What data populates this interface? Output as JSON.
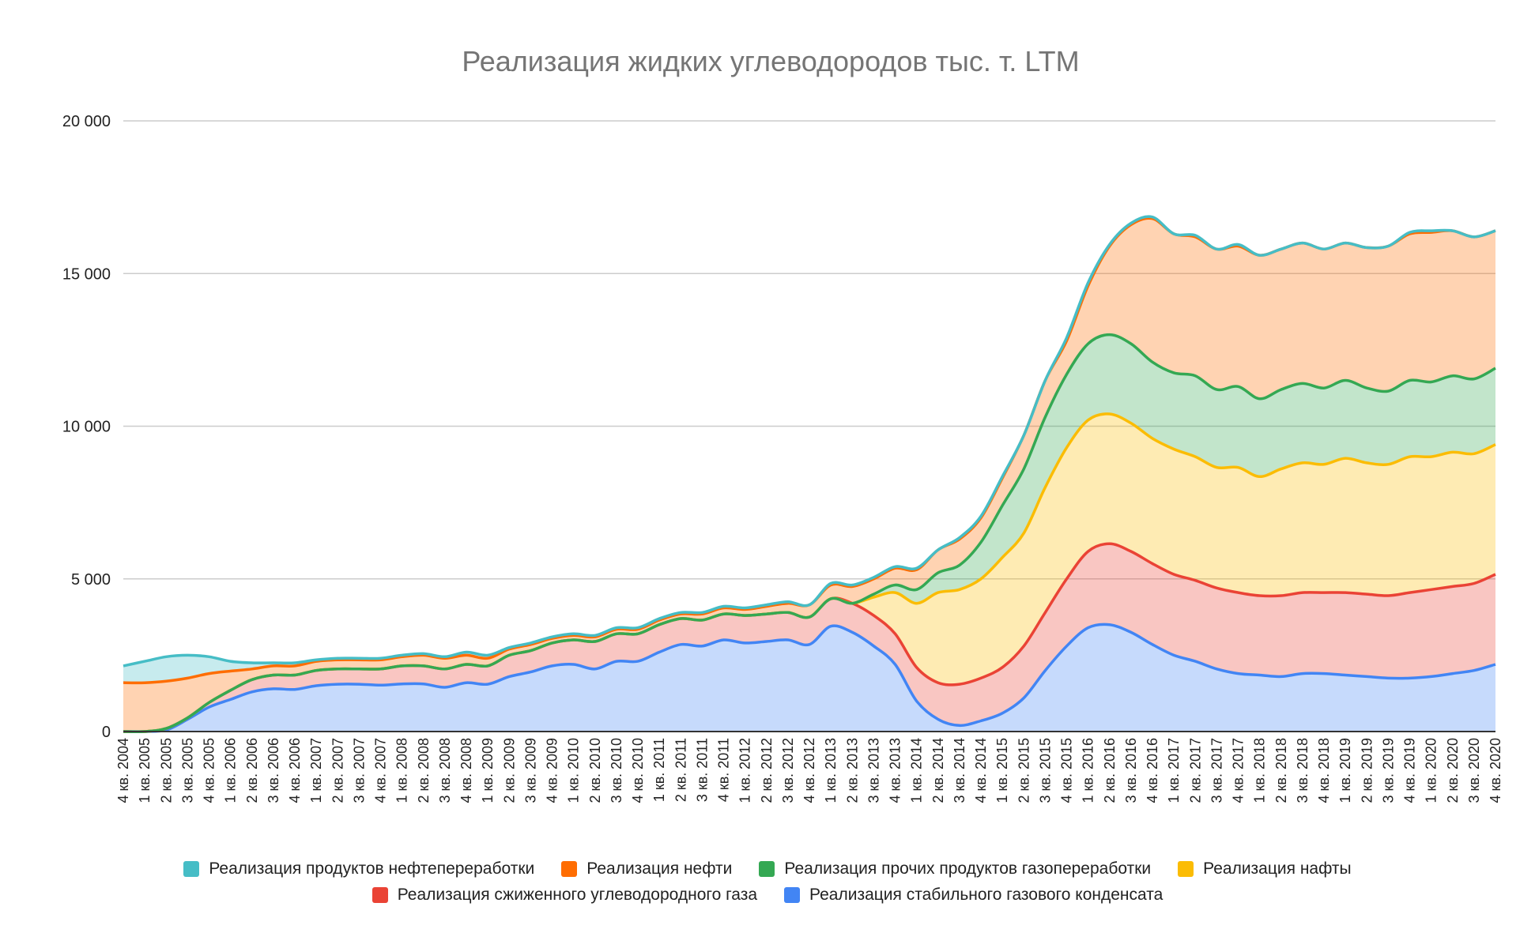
{
  "chart_data": {
    "type": "area",
    "stacked": true,
    "title": "Реализация жидких углеводородов тыс. т. LTM",
    "xlabel": "",
    "ylabel": "",
    "ylim": [
      0,
      20000
    ],
    "yticks": [
      0,
      5000,
      10000,
      15000,
      20000
    ],
    "ytick_labels": [
      "0",
      "5 000",
      "10 000",
      "15 000",
      "20 000"
    ],
    "grid": true,
    "legend_position": "bottom",
    "categories": [
      "4 кв. 2004",
      "1 кв. 2005",
      "2 кв. 2005",
      "3 кв. 2005",
      "4 кв. 2005",
      "1 кв. 2006",
      "2 кв. 2006",
      "3 кв. 2006",
      "4 кв. 2006",
      "1 кв. 2007",
      "2 кв. 2007",
      "3 кв. 2007",
      "4 кв. 2007",
      "1 кв. 2008",
      "2 кв. 2008",
      "3 кв. 2008",
      "4 кв. 2008",
      "1 кв. 2009",
      "2 кв. 2009",
      "3 кв. 2009",
      "4 кв. 2009",
      "1 кв. 2010",
      "2 кв. 2010",
      "3 кв. 2010",
      "4 кв. 2010",
      "1 кв. 2011",
      "2 кв. 2011",
      "3 кв. 2011",
      "4 кв. 2011",
      "1 кв. 2012",
      "2 кв. 2012",
      "3 кв. 2012",
      "4 кв. 2012",
      "1 кв. 2013",
      "2 кв. 2013",
      "3 кв. 2013",
      "4 кв. 2013",
      "1 кв. 2014",
      "2 кв. 2014",
      "3 кв. 2014",
      "4 кв. 2014",
      "1 кв. 2015",
      "2 кв. 2015",
      "3 кв. 2015",
      "4 кв. 2015",
      "1 кв. 2016",
      "2 кв. 2016",
      "3 кв. 2016",
      "4 кв. 2016",
      "1 кв. 2017",
      "2 кв. 2017",
      "3 кв. 2017",
      "4 кв. 2017",
      "1 кв. 2018",
      "2 кв. 2018",
      "3 кв. 2018",
      "4 кв. 2018",
      "1 кв. 2019",
      "2 кв. 2019",
      "3 кв. 2019",
      "4 кв. 2019",
      "1 кв. 2020",
      "2 кв. 2020",
      "3 кв. 2020",
      "4 кв. 2020"
    ],
    "series": [
      {
        "name": "Реализация стабильного газового конденсата",
        "color": "#4285f4",
        "values": [
          0,
          0,
          50,
          400,
          800,
          1050,
          1300,
          1400,
          1380,
          1500,
          1550,
          1550,
          1520,
          1560,
          1560,
          1450,
          1600,
          1550,
          1800,
          1950,
          2150,
          2200,
          2050,
          2300,
          2300,
          2600,
          2850,
          2800,
          3000,
          2900,
          2950,
          3000,
          2850,
          3450,
          3250,
          2800,
          2200,
          1000,
          400,
          200,
          350,
          600,
          1100,
          2000,
          2800,
          3400,
          3500,
          3250,
          2850,
          2500,
          2300,
          2050,
          1900,
          1850,
          1800,
          1900,
          1900,
          1850,
          1800,
          1750,
          1750,
          1800,
          1900,
          2000,
          2200
        ]
      },
      {
        "name": "Реализация сжиженного углеводородного газа",
        "color": "#ea4335",
        "values": [
          0,
          0,
          50,
          50,
          150,
          300,
          400,
          450,
          470,
          500,
          500,
          500,
          530,
          590,
          590,
          600,
          600,
          600,
          700,
          700,
          750,
          800,
          900,
          900,
          900,
          900,
          850,
          850,
          850,
          900,
          900,
          900,
          900,
          900,
          950,
          1000,
          1000,
          1100,
          1200,
          1350,
          1400,
          1500,
          1700,
          1900,
          2200,
          2500,
          2650,
          2650,
          2650,
          2650,
          2650,
          2650,
          2650,
          2600,
          2650,
          2650,
          2650,
          2700,
          2700,
          2700,
          2800,
          2850,
          2850,
          2850,
          2950
        ]
      },
      {
        "name": "Реализация нафты",
        "color": "#fbbc04",
        "values": [
          0,
          0,
          0,
          0,
          0,
          0,
          0,
          0,
          0,
          0,
          0,
          0,
          0,
          0,
          0,
          0,
          0,
          0,
          0,
          0,
          0,
          0,
          0,
          0,
          0,
          0,
          0,
          0,
          0,
          0,
          0,
          0,
          0,
          0,
          0,
          600,
          1350,
          2100,
          2950,
          3100,
          3250,
          3600,
          3700,
          4100,
          4300,
          4300,
          4250,
          4200,
          4100,
          4100,
          4050,
          3950,
          4100,
          3900,
          4150,
          4250,
          4200,
          4400,
          4300,
          4300,
          4450,
          4350,
          4400,
          4250,
          4250
        ]
      },
      {
        "name": "Реализация прочих продуктов газопереработки",
        "color": "#34a853",
        "values": [
          0,
          0,
          0,
          0,
          0,
          0,
          0,
          0,
          0,
          0,
          0,
          0,
          0,
          0,
          0,
          0,
          0,
          0,
          0,
          0,
          0,
          0,
          0,
          0,
          0,
          0,
          0,
          0,
          0,
          0,
          0,
          0,
          0,
          0,
          0,
          100,
          250,
          450,
          650,
          800,
          1200,
          1700,
          2100,
          2300,
          2400,
          2500,
          2600,
          2600,
          2500,
          2500,
          2650,
          2550,
          2650,
          2550,
          2600,
          2600,
          2500,
          2550,
          2450,
          2400,
          2500,
          2450,
          2500,
          2450,
          2500
        ]
      },
      {
        "name": "Реализация нефти",
        "color": "#ff6d01",
        "values": [
          1600,
          1600,
          1550,
          1300,
          950,
          630,
          350,
          300,
          300,
          300,
          300,
          300,
          300,
          300,
          350,
          350,
          300,
          250,
          200,
          200,
          150,
          150,
          150,
          150,
          150,
          150,
          150,
          200,
          200,
          200,
          250,
          300,
          400,
          450,
          550,
          500,
          550,
          650,
          750,
          850,
          800,
          900,
          1100,
          1200,
          1100,
          1900,
          2900,
          3900,
          4700,
          4550,
          4550,
          4600,
          4600,
          4700,
          4600,
          4600,
          4550,
          4500,
          4600,
          4750,
          4800,
          4900,
          4750,
          4650,
          4500
        ]
      },
      {
        "name": "Реализация продуктов нефтепереработки",
        "color": "#46bdc6",
        "values": [
          550,
          700,
          800,
          750,
          550,
          320,
          200,
          100,
          100,
          50,
          50,
          50,
          50,
          50,
          50,
          50,
          100,
          100,
          50,
          50,
          50,
          50,
          50,
          50,
          50,
          50,
          50,
          50,
          50,
          50,
          50,
          50,
          0,
          50,
          50,
          50,
          50,
          50,
          0,
          50,
          50,
          50,
          0,
          0,
          100,
          100,
          50,
          50,
          50,
          0,
          50,
          0,
          50,
          0,
          0,
          0,
          0,
          0,
          0,
          0,
          50,
          50,
          0,
          0,
          0
        ]
      }
    ],
    "legend_order": [
      5,
      4,
      3,
      2,
      1,
      0
    ]
  }
}
